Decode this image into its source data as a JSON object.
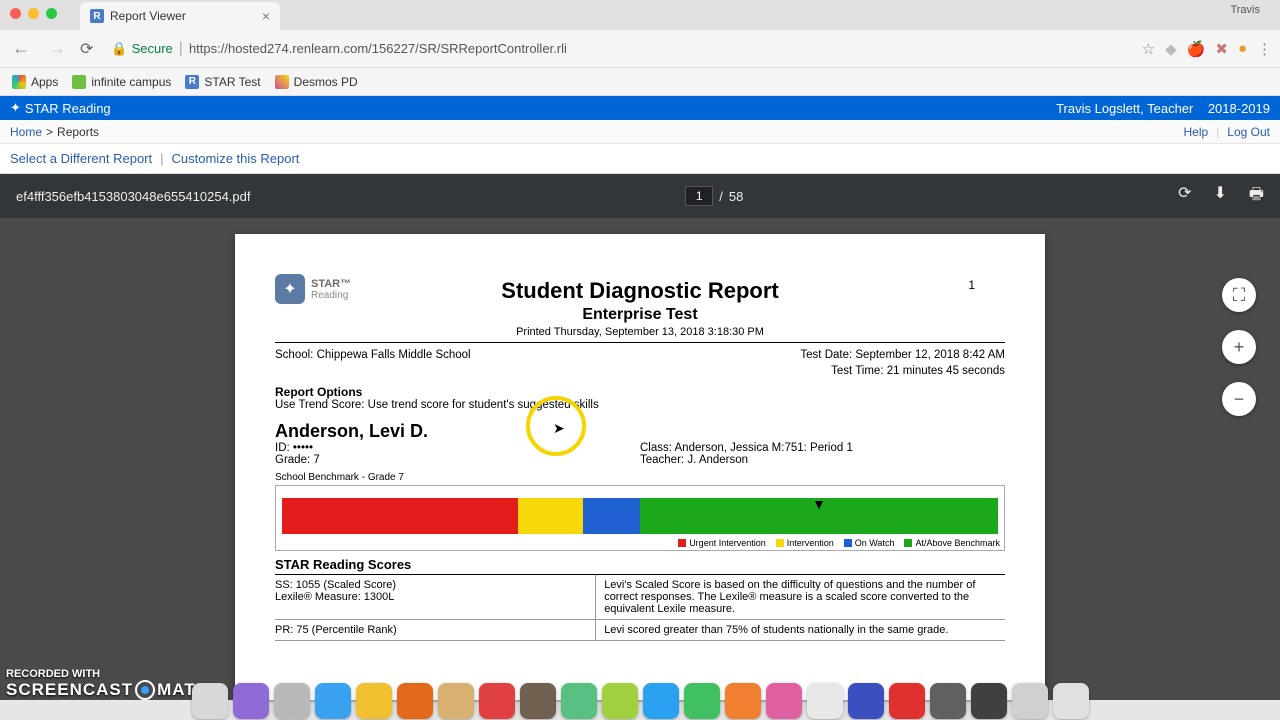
{
  "window": {
    "profile": "Travis",
    "tab_title": "Report Viewer"
  },
  "toolbar": {
    "secure_label": "Secure",
    "url": "https://hosted274.renlearn.com/156227/SR/SRReportController.rli"
  },
  "bookmarks": {
    "apps": "Apps",
    "items": [
      {
        "label": "infinite campus",
        "color": "#6fbf44"
      },
      {
        "label": "STAR Test",
        "color": "#4a7bc8"
      },
      {
        "label": "Desmos PD",
        "color": "#d04a9e"
      }
    ]
  },
  "appbar": {
    "title": "STAR Reading",
    "user": "Travis Logslett, Teacher",
    "year": "2018-2019"
  },
  "crumbs": {
    "home": "Home",
    "reports": "Reports",
    "help": "Help",
    "logout": "Log Out"
  },
  "links": {
    "select": "Select a Different Report",
    "customize": "Customize this Report"
  },
  "pdf": {
    "filename": "ef4fff356efb4153803048e655410254.pdf",
    "page": "1",
    "total": "58"
  },
  "report": {
    "logo_line1": "STAR™",
    "logo_line2": "Reading",
    "title": "Student Diagnostic Report",
    "subtitle": "Enterprise Test",
    "printed": "Printed Thursday, September 13, 2018 3:18:30 PM",
    "page_number": "1",
    "school_label": "School:",
    "school": "Chippewa Falls Middle School",
    "test_date_label": "Test Date:",
    "test_date": "September 12, 2018 8:42 AM",
    "test_time_label": "Test Time:",
    "test_time": "21 minutes 45 seconds",
    "options_header": "Report Options",
    "options_line": "Use Trend Score: Use trend score for student's suggested skills",
    "student_name": "Anderson, Levi D.",
    "id_label": "ID:",
    "id_value": "•••••",
    "grade_label": "Grade:",
    "grade_value": "7",
    "class_label": "Class:",
    "class_value": "Anderson, Jessica M:751: Period 1",
    "teacher_label": "Teacher:",
    "teacher_value": "J. Anderson",
    "benchmark_label": "School Benchmark - Grade 7",
    "benchmark": {
      "segments": [
        {
          "label": "Urgent Intervention",
          "color": "#e31b1b",
          "pct": 33
        },
        {
          "label": "Intervention",
          "color": "#f7d80a",
          "pct": 9
        },
        {
          "label": "On Watch",
          "color": "#1f5fd0",
          "pct": 8
        },
        {
          "label": "At/Above Benchmark",
          "color": "#1ba81b",
          "pct": 50
        }
      ],
      "marker_pct": 75
    },
    "scores_header": "STAR Reading Scores",
    "rows": [
      {
        "left1": "SS: 1055 (Scaled Score)",
        "left2": "Lexile® Measure: 1300L",
        "right": "Levi's Scaled Score is based on the difficulty of questions and the number of correct responses. The Lexile® measure is a scaled score converted to the equivalent Lexile measure."
      },
      {
        "left1": "PR: 75 (Percentile Rank)",
        "left2": "",
        "right": "Levi scored greater than 75% of students nationally in the same grade."
      }
    ]
  },
  "watermark": {
    "line1": "RECORDED WITH",
    "brand1": "SCREENCAST",
    "brand2": "MATIC"
  },
  "dock_colors": [
    "#d8d8d8",
    "#8e6bd6",
    "#b8b8b8",
    "#3aa0f0",
    "#f0c030",
    "#e06a1a",
    "#d8b070",
    "#e04040",
    "#706050",
    "#58c080",
    "#a0d040",
    "#2aa0f0",
    "#40c060",
    "#f08030",
    "#e060a0",
    "#e8e8e8",
    "#3a50c0",
    "#e03030",
    "#606060",
    "#404040",
    "#d0d0d0",
    "#e0e0e0"
  ]
}
